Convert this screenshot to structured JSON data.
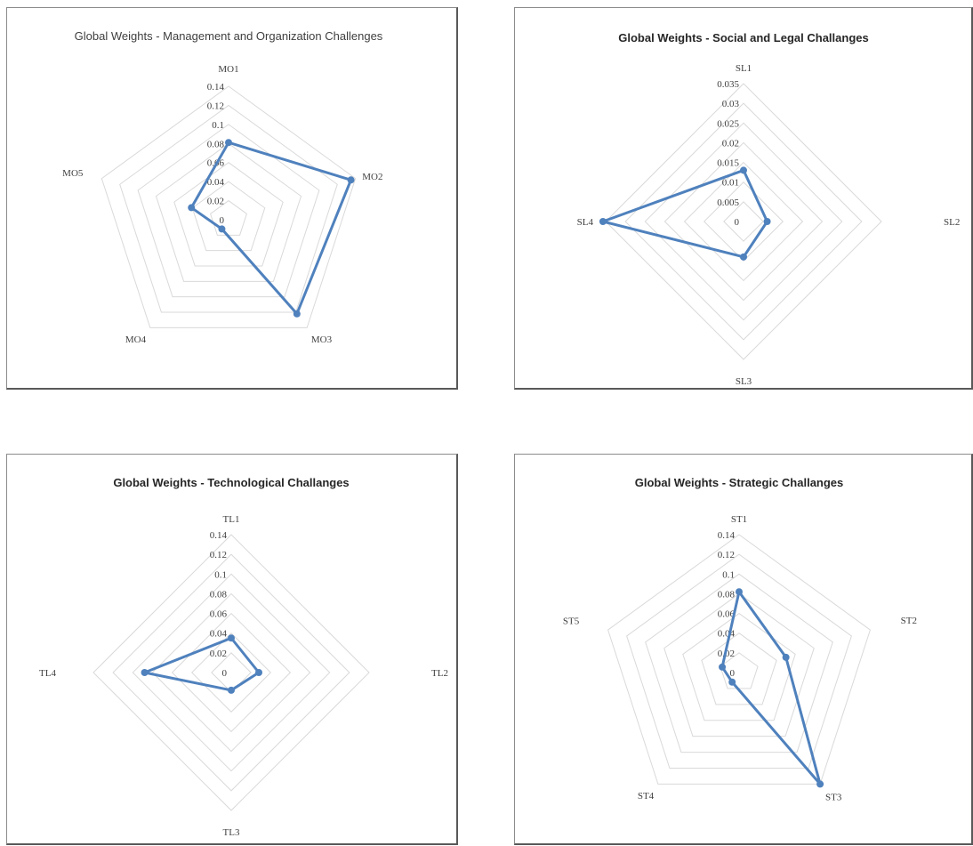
{
  "colors": {
    "series": "#4f81bd",
    "grid": "#d9d9d9",
    "text": "#404040"
  },
  "chart_data": [
    {
      "type": "radar",
      "title": "Global Weights - Management and Organization Challenges",
      "categories": [
        "MO1",
        "MO2",
        "MO3",
        "MO4",
        "MO5"
      ],
      "ticks": [
        "0",
        "0.02",
        "0.04",
        "0.06",
        "0.08",
        "0.1",
        "0.12",
        "0.14"
      ],
      "rmax": 0.14,
      "series": [
        {
          "values": [
            0.081,
            0.135,
            0.122,
            0.012,
            0.041
          ]
        }
      ],
      "grid": true
    },
    {
      "type": "radar",
      "title": "Global Weights - Social and Legal Challanges",
      "categories": [
        "SL1",
        "SL2",
        "SL3",
        "SL4"
      ],
      "ticks": [
        "0",
        "0.005",
        "0.01",
        "0.015",
        "0.02",
        "0.025",
        "0.03",
        "0.035"
      ],
      "rmax": 0.035,
      "series": [
        {
          "values": [
            0.013,
            0.006,
            0.009,
            0.037
          ]
        }
      ],
      "grid": true
    },
    {
      "type": "radar",
      "title": "Global Weights - Technological Challanges",
      "categories": [
        "TL1",
        "TL2",
        "TL3",
        "TL4"
      ],
      "ticks": [
        "0",
        "0.02",
        "0.04",
        "0.06",
        "0.08",
        "0.1",
        "0.12",
        "0.14"
      ],
      "rmax": 0.14,
      "series": [
        {
          "values": [
            0.035,
            0.028,
            0.018,
            0.088
          ]
        }
      ],
      "grid": true
    },
    {
      "type": "radar",
      "title": "Global Weights - Strategic Challanges",
      "categories": [
        "ST1",
        "ST2",
        "ST3",
        "ST4",
        "ST5"
      ],
      "ticks": [
        "0",
        "0.02",
        "0.04",
        "0.06",
        "0.08",
        "0.1",
        "0.12",
        "0.14"
      ],
      "rmax": 0.14,
      "series": [
        {
          "values": [
            0.082,
            0.05,
            0.14,
            0.012,
            0.018
          ]
        }
      ],
      "grid": true
    }
  ]
}
